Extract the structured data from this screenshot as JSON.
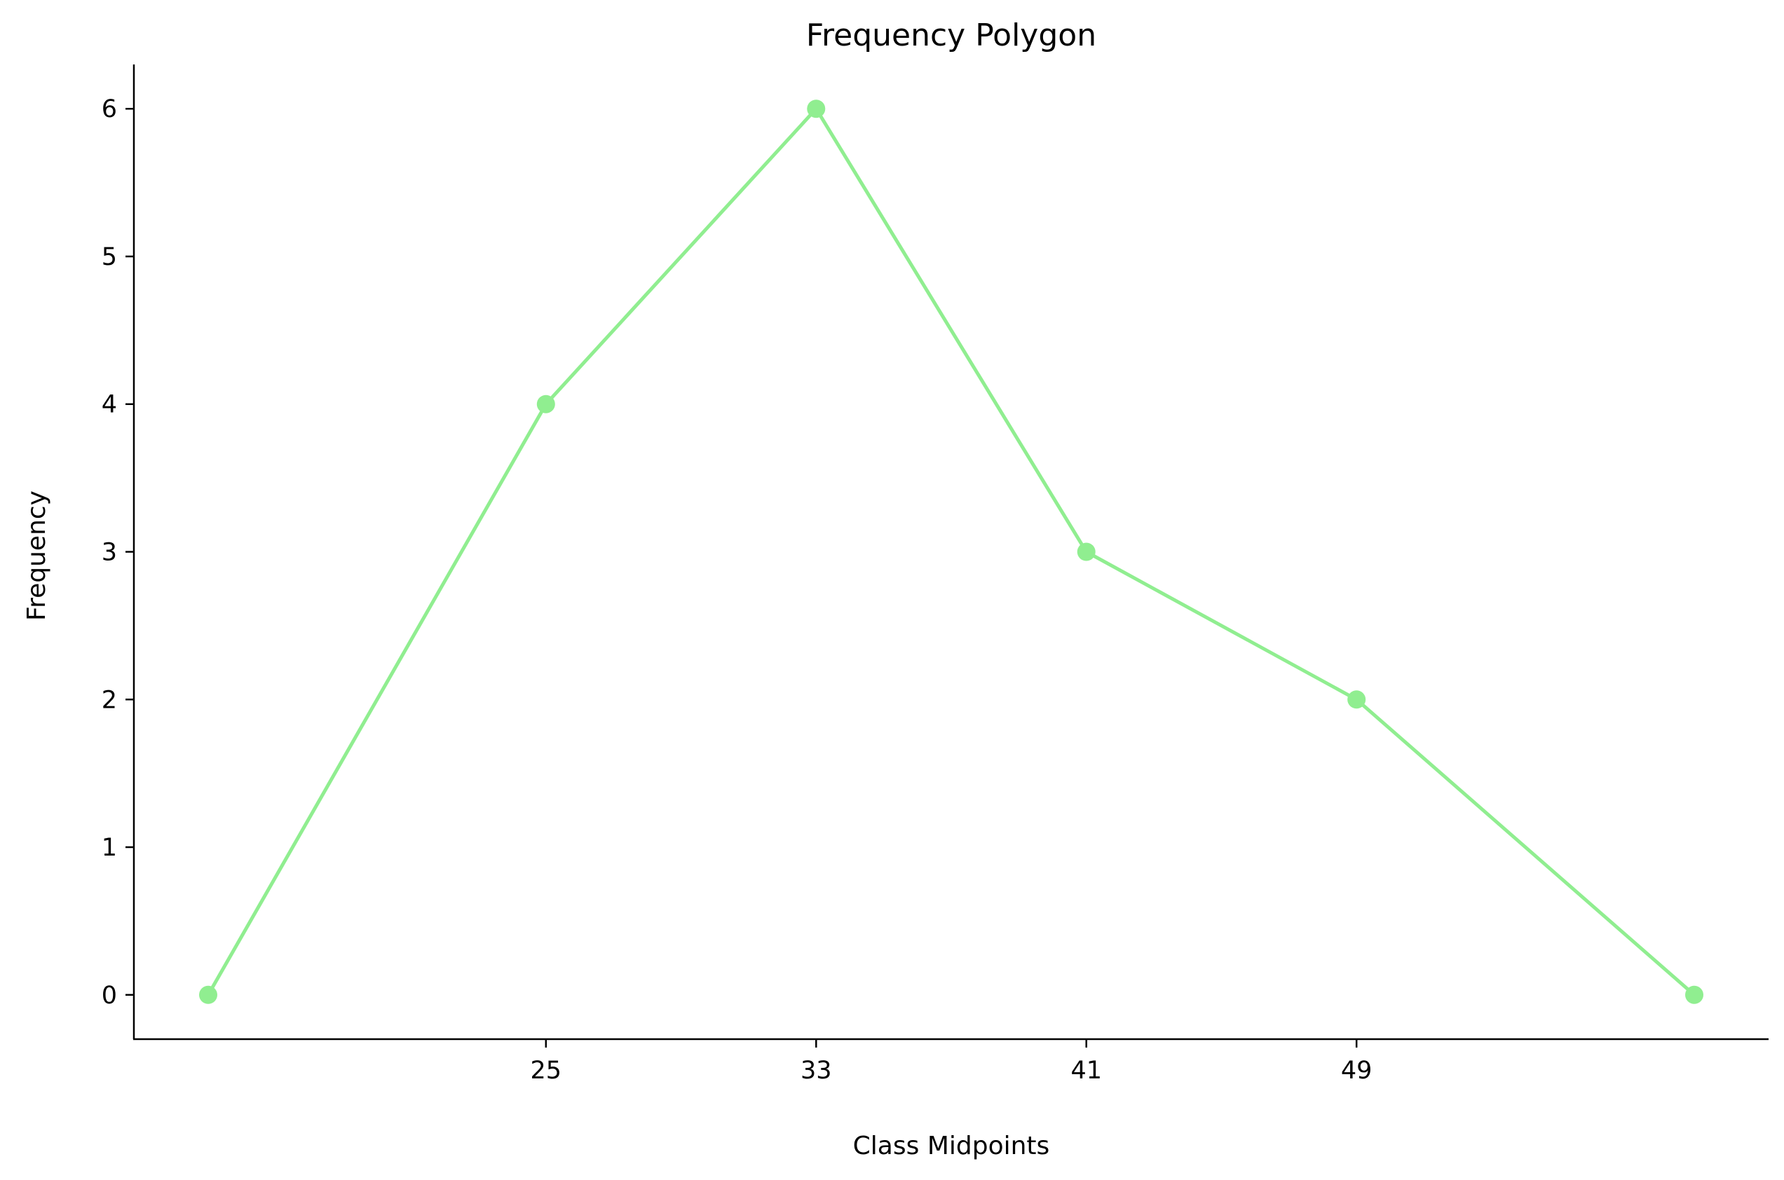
{
  "chart_data": {
    "type": "line",
    "title": "Frequency Polygon",
    "xlabel": "Class Midpoints",
    "ylabel": "Frequency",
    "x": [
      15,
      25,
      33,
      41,
      49,
      59
    ],
    "y": [
      0,
      4,
      6,
      3,
      2,
      0
    ],
    "xlim": [
      12.8,
      61.2
    ],
    "ylim": [
      -0.3,
      6.3
    ],
    "x_ticks": [
      25,
      33,
      41,
      49
    ],
    "y_ticks": [
      0,
      1,
      2,
      3,
      4,
      5,
      6
    ],
    "grid": false,
    "line_color": "#90ee90",
    "marker": "circle"
  }
}
